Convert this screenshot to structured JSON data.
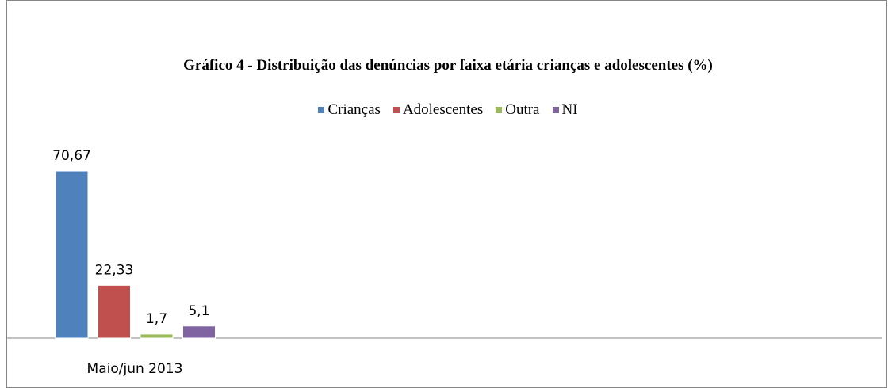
{
  "chart_data": {
    "type": "bar",
    "title": "Gráfico 4 - Distribuição das denúncias por faixa etária crianças e adolescentes (%)",
    "categories": [
      "Maio/jun 2013"
    ],
    "series": [
      {
        "name": "Crianças",
        "color": "#4f81bd",
        "values": [
          70.67
        ],
        "value_labels": [
          "70,67"
        ]
      },
      {
        "name": "Adolescentes",
        "color": "#c0504d",
        "values": [
          22.33
        ],
        "value_labels": [
          "22,33"
        ]
      },
      {
        "name": "Outra",
        "color": "#9bbb59",
        "values": [
          1.7
        ],
        "value_labels": [
          "1,7"
        ]
      },
      {
        "name": "NI",
        "color": "#8064a2",
        "values": [
          5.1
        ],
        "value_labels": [
          "5,1"
        ]
      }
    ]
  }
}
